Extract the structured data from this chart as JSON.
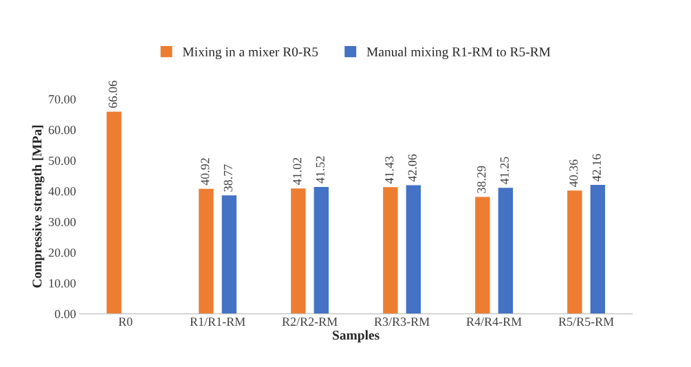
{
  "chart_data": {
    "type": "bar",
    "xlabel": "Samples",
    "ylabel": "Compressive strength [MPa]",
    "categories": [
      "R0",
      "R1/R1-RM",
      "R2/R2-RM",
      "R3/R3-RM",
      "R4/R4-RM",
      "R5/R5-RM"
    ],
    "series": [
      {
        "name": "Mixing in a mixer R0-R5",
        "color": "#ed7d31",
        "values": [
          66.06,
          40.92,
          41.02,
          41.43,
          38.29,
          40.36
        ]
      },
      {
        "name": "Manual mixing R1-RM to R5-RM",
        "color": "#4472c4",
        "values": [
          null,
          38.77,
          41.52,
          42.06,
          41.25,
          42.16
        ]
      }
    ],
    "ylim": [
      0,
      70
    ],
    "yticks": [
      {
        "value": 0,
        "label": "0.00"
      },
      {
        "value": 10,
        "label": "10.00"
      },
      {
        "value": 20,
        "label": "20.00"
      },
      {
        "value": 30,
        "label": "30.00"
      },
      {
        "value": 40,
        "label": "40.00"
      },
      {
        "value": 50,
        "label": "50.00"
      },
      {
        "value": 60,
        "label": "60.00"
      },
      {
        "value": 70,
        "label": "70.00"
      }
    ],
    "data_labels": true,
    "grid": false,
    "legend": "top"
  }
}
